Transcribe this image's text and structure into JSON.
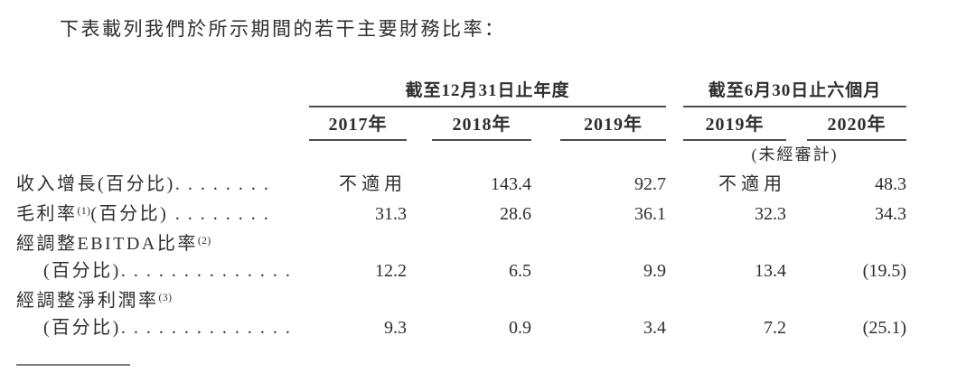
{
  "page": {
    "intro": "下表載列我們於所示期間的若干主要財務比率："
  },
  "table": {
    "col_groups": [
      {
        "label": "截至12月31日止年度"
      },
      {
        "label": "截至6月30日止六個月"
      }
    ],
    "col_headers": [
      "2017年",
      "2018年",
      "2019年",
      "2019年",
      "2020年"
    ],
    "unaudited_note": "(未經審計)",
    "rows": [
      {
        "label": "收入增長(百分比)",
        "dots": "........",
        "values": [
          "不適用",
          "143.4",
          "92.7",
          "不適用",
          "48.3"
        ]
      },
      {
        "label": "毛利率",
        "sup": "(1)",
        "label2": "(百分比) ",
        "dots": "........",
        "values": [
          "31.3",
          "28.6",
          "36.1",
          "32.3",
          "34.3"
        ]
      },
      {
        "line1": "經調整EBITDA比率",
        "line1_sup": "(2)",
        "line2_label": "(百分比)",
        "dots": "..............",
        "values": [
          "12.2",
          "6.5",
          "9.9",
          "13.4",
          "(19.5)"
        ]
      },
      {
        "line1": "經調整淨利潤率",
        "line1_sup": "(3)",
        "line2_label": "(百分比)",
        "dots": "..............",
        "values": [
          "9.3",
          "0.9",
          "3.4",
          "7.2",
          "(25.1)"
        ]
      }
    ]
  }
}
